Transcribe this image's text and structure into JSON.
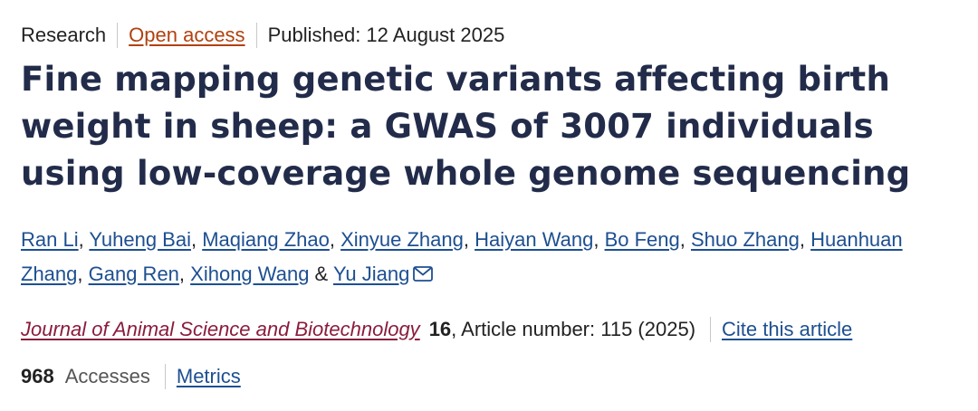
{
  "meta": {
    "article_type": "Research",
    "open_access": "Open access",
    "published": "Published: 12 August 2025"
  },
  "title": "Fine mapping genetic variants affecting birth weight in sheep: a GWAS of 3007 individuals using low-coverage whole genome sequencing",
  "authors": [
    {
      "name": "Ran Li",
      "sep": ", "
    },
    {
      "name": "Yuheng Bai",
      "sep": ", "
    },
    {
      "name": "Maqiang Zhao",
      "sep": ", "
    },
    {
      "name": "Xinyue Zhang",
      "sep": ", "
    },
    {
      "name": "Haiyan Wang",
      "sep": ", "
    },
    {
      "name": "Bo Feng",
      "sep": ", "
    },
    {
      "name": "Shuo Zhang",
      "sep": ", "
    },
    {
      "name": "Huanhuan Zhang",
      "sep": ", "
    },
    {
      "name": "Gang Ren",
      "sep": ", "
    },
    {
      "name": "Xihong Wang",
      "sep": " & "
    },
    {
      "name": "Yu Jiang",
      "sep": ""
    }
  ],
  "citation": {
    "journal": "Journal of Animal Science and Biotechnology",
    "volume": "16",
    "article_number": ", Article number: 115 (2025)",
    "cite_label": "Cite this article"
  },
  "stats": {
    "accesses_count": "968",
    "accesses_label": "Accesses",
    "metrics_label": "Metrics"
  },
  "icons": {
    "mail": "mail-icon"
  },
  "colors": {
    "title": "#222c4a",
    "link": "#1d4f91",
    "open_access": "#b1410f",
    "journal": "#8a1c3d"
  }
}
